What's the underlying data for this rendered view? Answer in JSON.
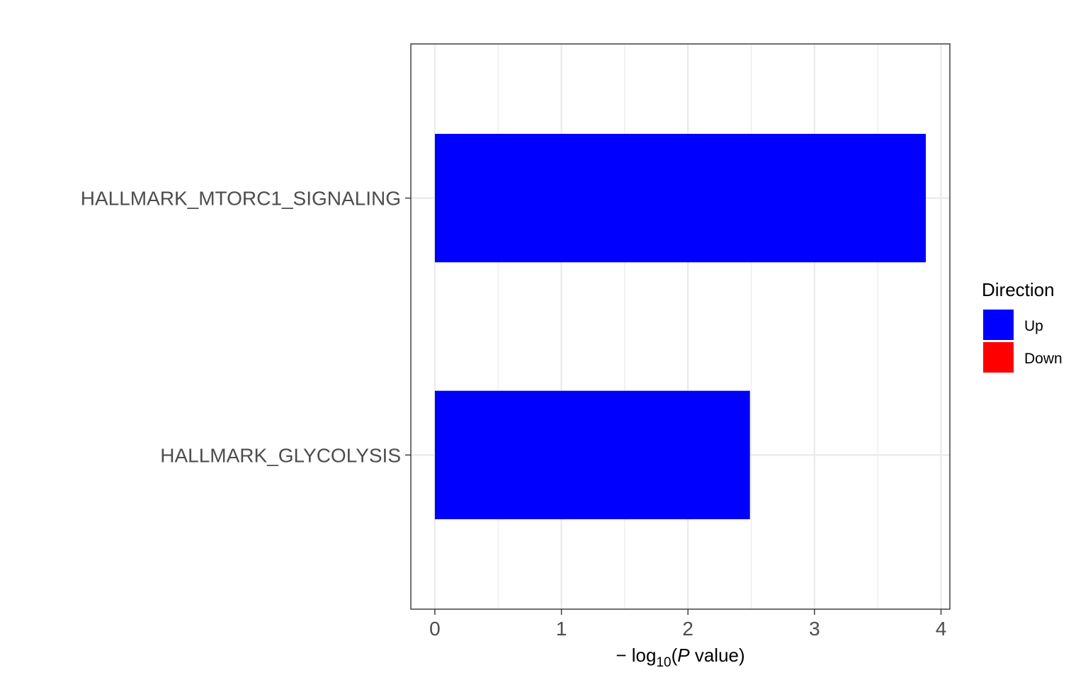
{
  "chart_data": {
    "type": "bar",
    "orientation": "horizontal",
    "categories": [
      "HALLMARK_MTORC1_SIGNALING",
      "HALLMARK_GLYCOLYSIS"
    ],
    "series": [
      {
        "name": "Up",
        "values": [
          3.88,
          2.49
        ]
      }
    ],
    "bar_direction": [
      "Up",
      "Up"
    ],
    "xlabel": {
      "prefix": "− log",
      "subscript": "10",
      "open": "(",
      "italic": "P",
      "suffix": " value)"
    },
    "ylabel": "",
    "xlim": [
      -0.19,
      4.07
    ],
    "xticks": [
      "0",
      "1",
      "2",
      "3",
      "4"
    ],
    "grid": true,
    "legend": {
      "title": "Direction",
      "position": "right",
      "entries": [
        {
          "label": "Up",
          "color": "#0000FF"
        },
        {
          "label": "Down",
          "color": "#FF0000"
        }
      ]
    },
    "colors": {
      "Up": "#0000FF",
      "Down": "#FF0000",
      "grid": "#EBEBEB",
      "panel_border": "#333333"
    }
  }
}
